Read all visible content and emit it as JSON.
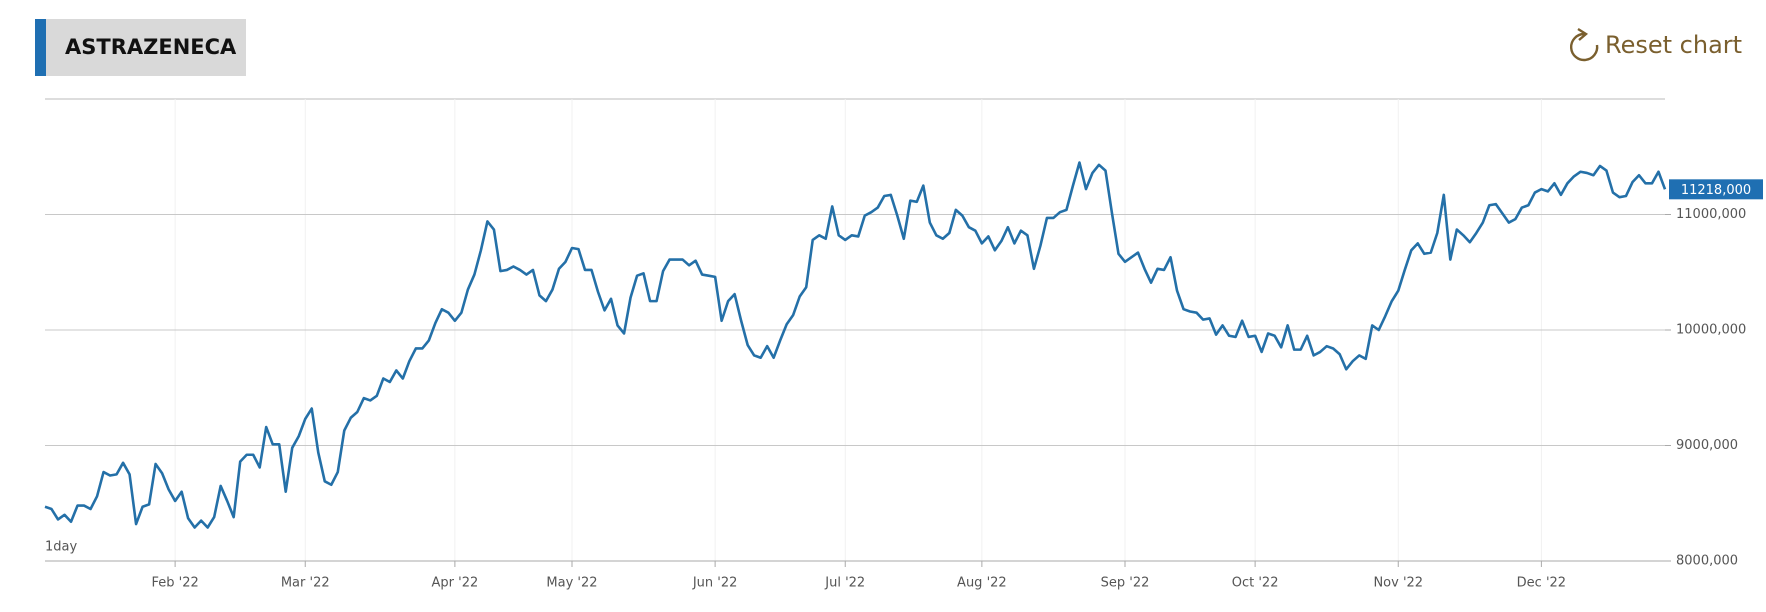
{
  "chart_data": {
    "type": "line",
    "title": "ASTRAZENECA",
    "interval": "1day",
    "color": "#2470a8",
    "grid": true,
    "xlim": [
      0,
      249
    ],
    "xticks": [
      {
        "value": 20,
        "label": "Feb '22"
      },
      {
        "value": 40,
        "label": "Mar '22"
      },
      {
        "value": 63,
        "label": "Apr '22"
      },
      {
        "value": 81,
        "label": "May '22"
      },
      {
        "value": 103,
        "label": "Jun '22"
      },
      {
        "value": 123,
        "label": "Jul '22"
      },
      {
        "value": 144,
        "label": "Aug '22"
      },
      {
        "value": 166,
        "label": "Sep '22"
      },
      {
        "value": 186,
        "label": "Oct '22"
      },
      {
        "value": 208,
        "label": "Nov '22"
      },
      {
        "value": 230,
        "label": "Dec '22"
      }
    ],
    "ylim": [
      8000000,
      12000000
    ],
    "yticks": [
      {
        "value": 8000000,
        "label": "8000,000"
      },
      {
        "value": 9000000,
        "label": "9000,000"
      },
      {
        "value": 10000000,
        "label": "10000,000"
      },
      {
        "value": 11000000,
        "label": "11000,000"
      }
    ],
    "x": [
      0,
      1,
      2,
      3,
      4,
      5,
      6,
      7,
      8,
      9,
      10,
      11,
      12,
      13,
      14,
      15,
      16,
      17,
      18,
      19,
      20,
      21,
      22,
      23,
      24,
      25,
      26,
      27,
      28,
      29,
      30,
      31,
      32,
      33,
      34,
      35,
      36,
      37,
      38,
      39,
      40,
      41,
      42,
      43,
      44,
      45,
      46,
      47,
      48,
      49,
      50,
      51,
      52,
      53,
      54,
      55,
      56,
      57,
      58,
      59,
      60,
      61,
      62,
      63,
      64,
      65,
      66,
      67,
      68,
      69,
      70,
      71,
      72,
      73,
      74,
      75,
      76,
      77,
      78,
      79,
      80,
      81,
      82,
      83,
      84,
      85,
      86,
      87,
      88,
      89,
      90,
      91,
      92,
      93,
      94,
      95,
      96,
      97,
      98,
      99,
      100,
      101,
      102,
      103,
      104,
      105,
      106,
      107,
      108,
      109,
      110,
      111,
      112,
      113,
      114,
      115,
      116,
      117,
      118,
      119,
      120,
      121,
      122,
      123,
      124,
      125,
      126,
      127,
      128,
      129,
      130,
      131,
      132,
      133,
      134,
      135,
      136,
      137,
      138,
      139,
      140,
      141,
      142,
      143,
      144,
      145,
      146,
      147,
      148,
      149,
      150,
      151,
      152,
      153,
      154,
      155,
      156,
      157,
      158,
      159,
      160,
      161,
      162,
      163,
      164,
      165,
      166,
      167,
      168,
      169,
      170,
      171,
      172,
      173,
      174,
      175,
      176,
      177,
      178,
      179,
      180,
      181,
      182,
      183,
      184,
      185,
      186,
      187,
      188,
      189,
      190,
      191,
      192,
      193,
      194,
      195,
      196,
      197,
      198,
      199,
      200,
      201,
      202,
      203,
      204,
      205,
      206,
      207,
      208,
      209,
      210,
      211,
      212,
      213,
      214,
      215,
      216,
      217,
      218,
      219,
      220,
      221,
      222,
      223,
      224,
      225,
      226,
      227,
      228,
      229,
      230,
      231,
      232,
      233,
      234,
      235,
      236,
      237,
      238,
      239,
      240,
      241,
      242,
      243,
      244,
      245,
      246,
      247,
      248,
      249
    ],
    "values": [
      8470000,
      8450000,
      8360000,
      8400000,
      8340000,
      8480000,
      8480000,
      8450000,
      8560000,
      8770000,
      8740000,
      8750000,
      8850000,
      8750000,
      8320000,
      8470000,
      8490000,
      8840000,
      8760000,
      8620000,
      8520000,
      8600000,
      8370000,
      8290000,
      8350000,
      8290000,
      8380000,
      8650000,
      8520000,
      8380000,
      8860000,
      8920000,
      8920000,
      8810000,
      9160000,
      9010000,
      9010000,
      8600000,
      8980000,
      9080000,
      9230000,
      9320000,
      8940000,
      8690000,
      8660000,
      8770000,
      9130000,
      9240000,
      9290000,
      9410000,
      9390000,
      9430000,
      9580000,
      9550000,
      9650000,
      9580000,
      9730000,
      9840000,
      9840000,
      9910000,
      10060000,
      10180000,
      10150000,
      10080000,
      10150000,
      10350000,
      10480000,
      10690000,
      10940000,
      10870000,
      10510000,
      10520000,
      10550000,
      10520000,
      10480000,
      10520000,
      10300000,
      10250000,
      10350000,
      10530000,
      10590000,
      10710000,
      10700000,
      10520000,
      10520000,
      10330000,
      10170000,
      10270000,
      10040000,
      9970000,
      10280000,
      10470000,
      10490000,
      10250000,
      10250000,
      10510000,
      10610000,
      10610000,
      10610000,
      10560000,
      10600000,
      10480000,
      10470000,
      10460000,
      10080000,
      10250000,
      10310000,
      10080000,
      9870000,
      9780000,
      9760000,
      9860000,
      9760000,
      9910000,
      10050000,
      10130000,
      10290000,
      10370000,
      10780000,
      10820000,
      10790000,
      11070000,
      10820000,
      10780000,
      10820000,
      10810000,
      10990000,
      11020000,
      11060000,
      11160000,
      11170000,
      10990000,
      10790000,
      11120000,
      11110000,
      11250000,
      10930000,
      10820000,
      10790000,
      10840000,
      11040000,
      10990000,
      10890000,
      10860000,
      10750000,
      10810000,
      10690000,
      10770000,
      10890000,
      10750000,
      10860000,
      10820000,
      10530000,
      10730000,
      10970000,
      10970000,
      11020000,
      11040000,
      11250000,
      11450000,
      11220000,
      11360000,
      11430000,
      11380000,
      11010000,
      10660000,
      10590000,
      10630000,
      10670000,
      10530000,
      10410000,
      10530000,
      10520000,
      10630000,
      10340000,
      10180000,
      10160000,
      10150000,
      10090000,
      10100000,
      9960000,
      10040000,
      9950000,
      9940000,
      10080000,
      9940000,
      9950000,
      9810000,
      9970000,
      9950000,
      9850000,
      10040000,
      9830000,
      9830000,
      9950000,
      9780000,
      9810000,
      9860000,
      9840000,
      9790000,
      9660000,
      9730000,
      9780000,
      9750000,
      10040000,
      10000000,
      10120000,
      10250000,
      10340000,
      10520000,
      10690000,
      10750000,
      10660000,
      10670000,
      10840000,
      11170000,
      10610000,
      10870000,
      10820000,
      10760000,
      10840000,
      10930000,
      11080000,
      11090000,
      11010000,
      10930000,
      10960000,
      11060000,
      11080000,
      11190000,
      11220000,
      11200000,
      11270000,
      11170000,
      11270000,
      11330000,
      11370000,
      11360000,
      11340000,
      11420000,
      11380000,
      11190000,
      11150000,
      11160000,
      11280000,
      11340000,
      11270000,
      11270000,
      11370000,
      11218000
    ],
    "value_labels": [
      null,
      null,
      null,
      null,
      null,
      null,
      null,
      null,
      null,
      null,
      null,
      null,
      null,
      null,
      null,
      null,
      null,
      null,
      null,
      null,
      null,
      null,
      null,
      null,
      null,
      null,
      null,
      null,
      null,
      null,
      null,
      null,
      null,
      null,
      null,
      null,
      null,
      null,
      null,
      null,
      null,
      null,
      null,
      null,
      null,
      null,
      null,
      null,
      null,
      null,
      null,
      null,
      null,
      null,
      null,
      null,
      null,
      null,
      null,
      null,
      null,
      null,
      null,
      null,
      null,
      null,
      null,
      null,
      null,
      null,
      null,
      null,
      null,
      null,
      null,
      null,
      null,
      null,
      null,
      null,
      null,
      null,
      null,
      null,
      null,
      null,
      null,
      null,
      null,
      null,
      null,
      null,
      null,
      null,
      null,
      null,
      null,
      null,
      null,
      null,
      null,
      null,
      null,
      null,
      null,
      null,
      null,
      null,
      null,
      null,
      null,
      null,
      null,
      null,
      null,
      null,
      null,
      null,
      null,
      null,
      null,
      null,
      null,
      null,
      null,
      null,
      null,
      null,
      null,
      null,
      null,
      null,
      null,
      null,
      null,
      null,
      null,
      null,
      null,
      null,
      null,
      null,
      null,
      null,
      null,
      null,
      null,
      null,
      null,
      null,
      null,
      null,
      null,
      null,
      null,
      null,
      null,
      null,
      null,
      null,
      null,
      null,
      null,
      null,
      null,
      null,
      null,
      null,
      null,
      null,
      null,
      null,
      null,
      null,
      null,
      null,
      null,
      null,
      null,
      null,
      null,
      null,
      null,
      null,
      null,
      null,
      null,
      null,
      null,
      null,
      null,
      null,
      null,
      null,
      null,
      null,
      null,
      null,
      null,
      null,
      null,
      null,
      null,
      null,
      null,
      null,
      null,
      null,
      null,
      null,
      null,
      null,
      null,
      null,
      null,
      null,
      null,
      null,
      null,
      null,
      null,
      null,
      null,
      null,
      null,
      null,
      null,
      null,
      null,
      null,
      null,
      null,
      null,
      null,
      null,
      null,
      null,
      null,
      null,
      null,
      null,
      null,
      null,
      null,
      null,
      null,
      null,
      null,
      null,
      "11218,000"
    ]
  },
  "reset_button": "Reset chart"
}
